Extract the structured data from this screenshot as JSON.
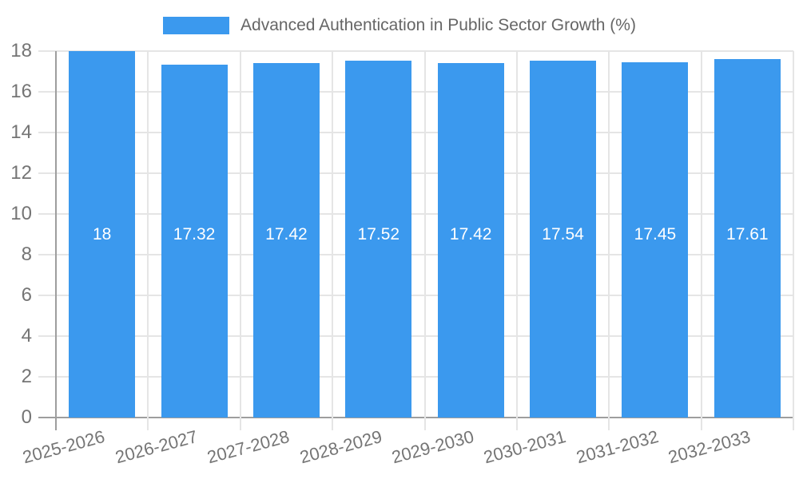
{
  "legend": {
    "label": "Advanced Authentication in Public Sector Growth (%)"
  },
  "colors": {
    "bar": "#3B99EE",
    "grid": "#E5E5E5",
    "axis": "#9E9E9E",
    "tick_label": "#757575",
    "title": "#666666",
    "value_label": "#FFFFFF"
  },
  "chart_data": {
    "type": "bar",
    "title": "Advanced Authentication in Public Sector Growth (%)",
    "categories": [
      "2025-2026",
      "2026-2027",
      "2027-2028",
      "2028-2029",
      "2029-2030",
      "2030-2031",
      "2031-2032",
      "2032-2033"
    ],
    "values": [
      18,
      17.32,
      17.42,
      17.52,
      17.42,
      17.54,
      17.45,
      17.61
    ],
    "value_labels": [
      "18",
      "17.32",
      "17.42",
      "17.52",
      "17.42",
      "17.54",
      "17.45",
      "17.61"
    ],
    "xlabel": "",
    "ylabel": "",
    "ylim": [
      0,
      18
    ],
    "yticks": [
      0,
      2,
      4,
      6,
      8,
      10,
      12,
      14,
      16,
      18
    ],
    "grid": true,
    "legend_position": "top"
  }
}
